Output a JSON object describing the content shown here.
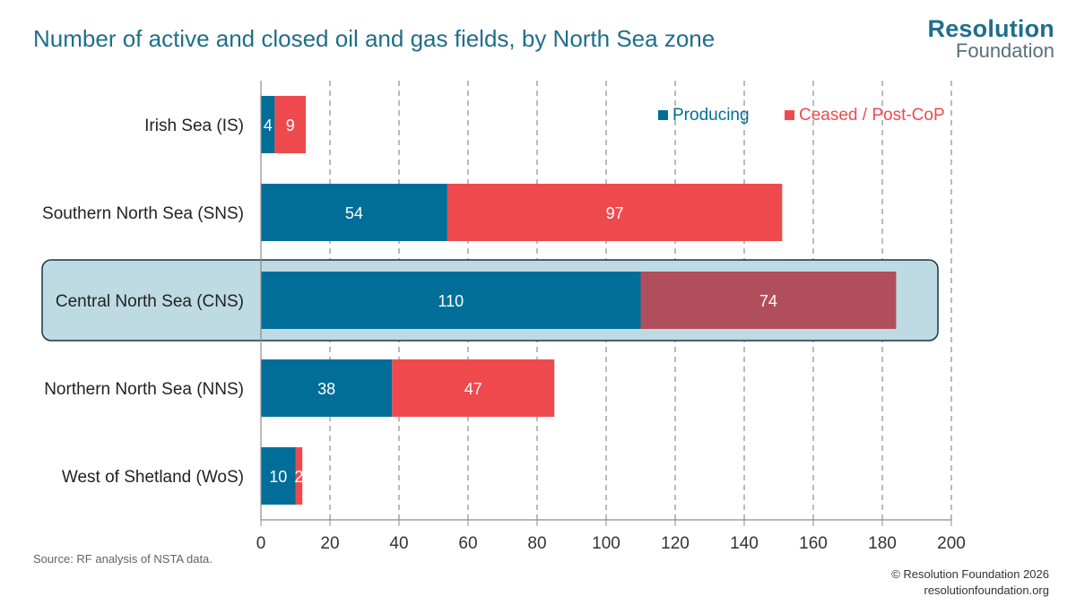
{
  "title": "Number of active and closed oil and gas fields, by North Sea zone",
  "logo": {
    "line1": "Resolution",
    "line2": "Foundation"
  },
  "source": "Source: RF analysis of NSTA data.",
  "copyright": "© Resolution Foundation 2026",
  "website": "resolutionfoundation.org",
  "colors": {
    "producing": "#006e99",
    "ceased": "#ee4a4e",
    "ceased_highlight": "#b14e5b",
    "highlight_bg": "#bedae3",
    "title": "#1f6e8c"
  },
  "chart_data": {
    "type": "bar",
    "orientation": "horizontal",
    "stacked": true,
    "categories": [
      "Irish Sea (IS)",
      "Southern North Sea (SNS)",
      "Central North Sea (CNS)",
      "Northern North Sea (NNS)",
      "West of Shetland (WoS)"
    ],
    "series": [
      {
        "name": "Producing",
        "values": [
          4,
          54,
          110,
          38,
          10
        ]
      },
      {
        "name": "Ceased / Post-CoP",
        "values": [
          9,
          97,
          74,
          47,
          2
        ]
      }
    ],
    "xlim": [
      0,
      200
    ],
    "xticks": [
      0,
      20,
      40,
      60,
      80,
      100,
      120,
      140,
      160,
      180,
      200
    ],
    "grid": "vertical dashed",
    "legend": "top-right",
    "highlighted_category": "Central North Sea (CNS)",
    "data_labels": true
  }
}
